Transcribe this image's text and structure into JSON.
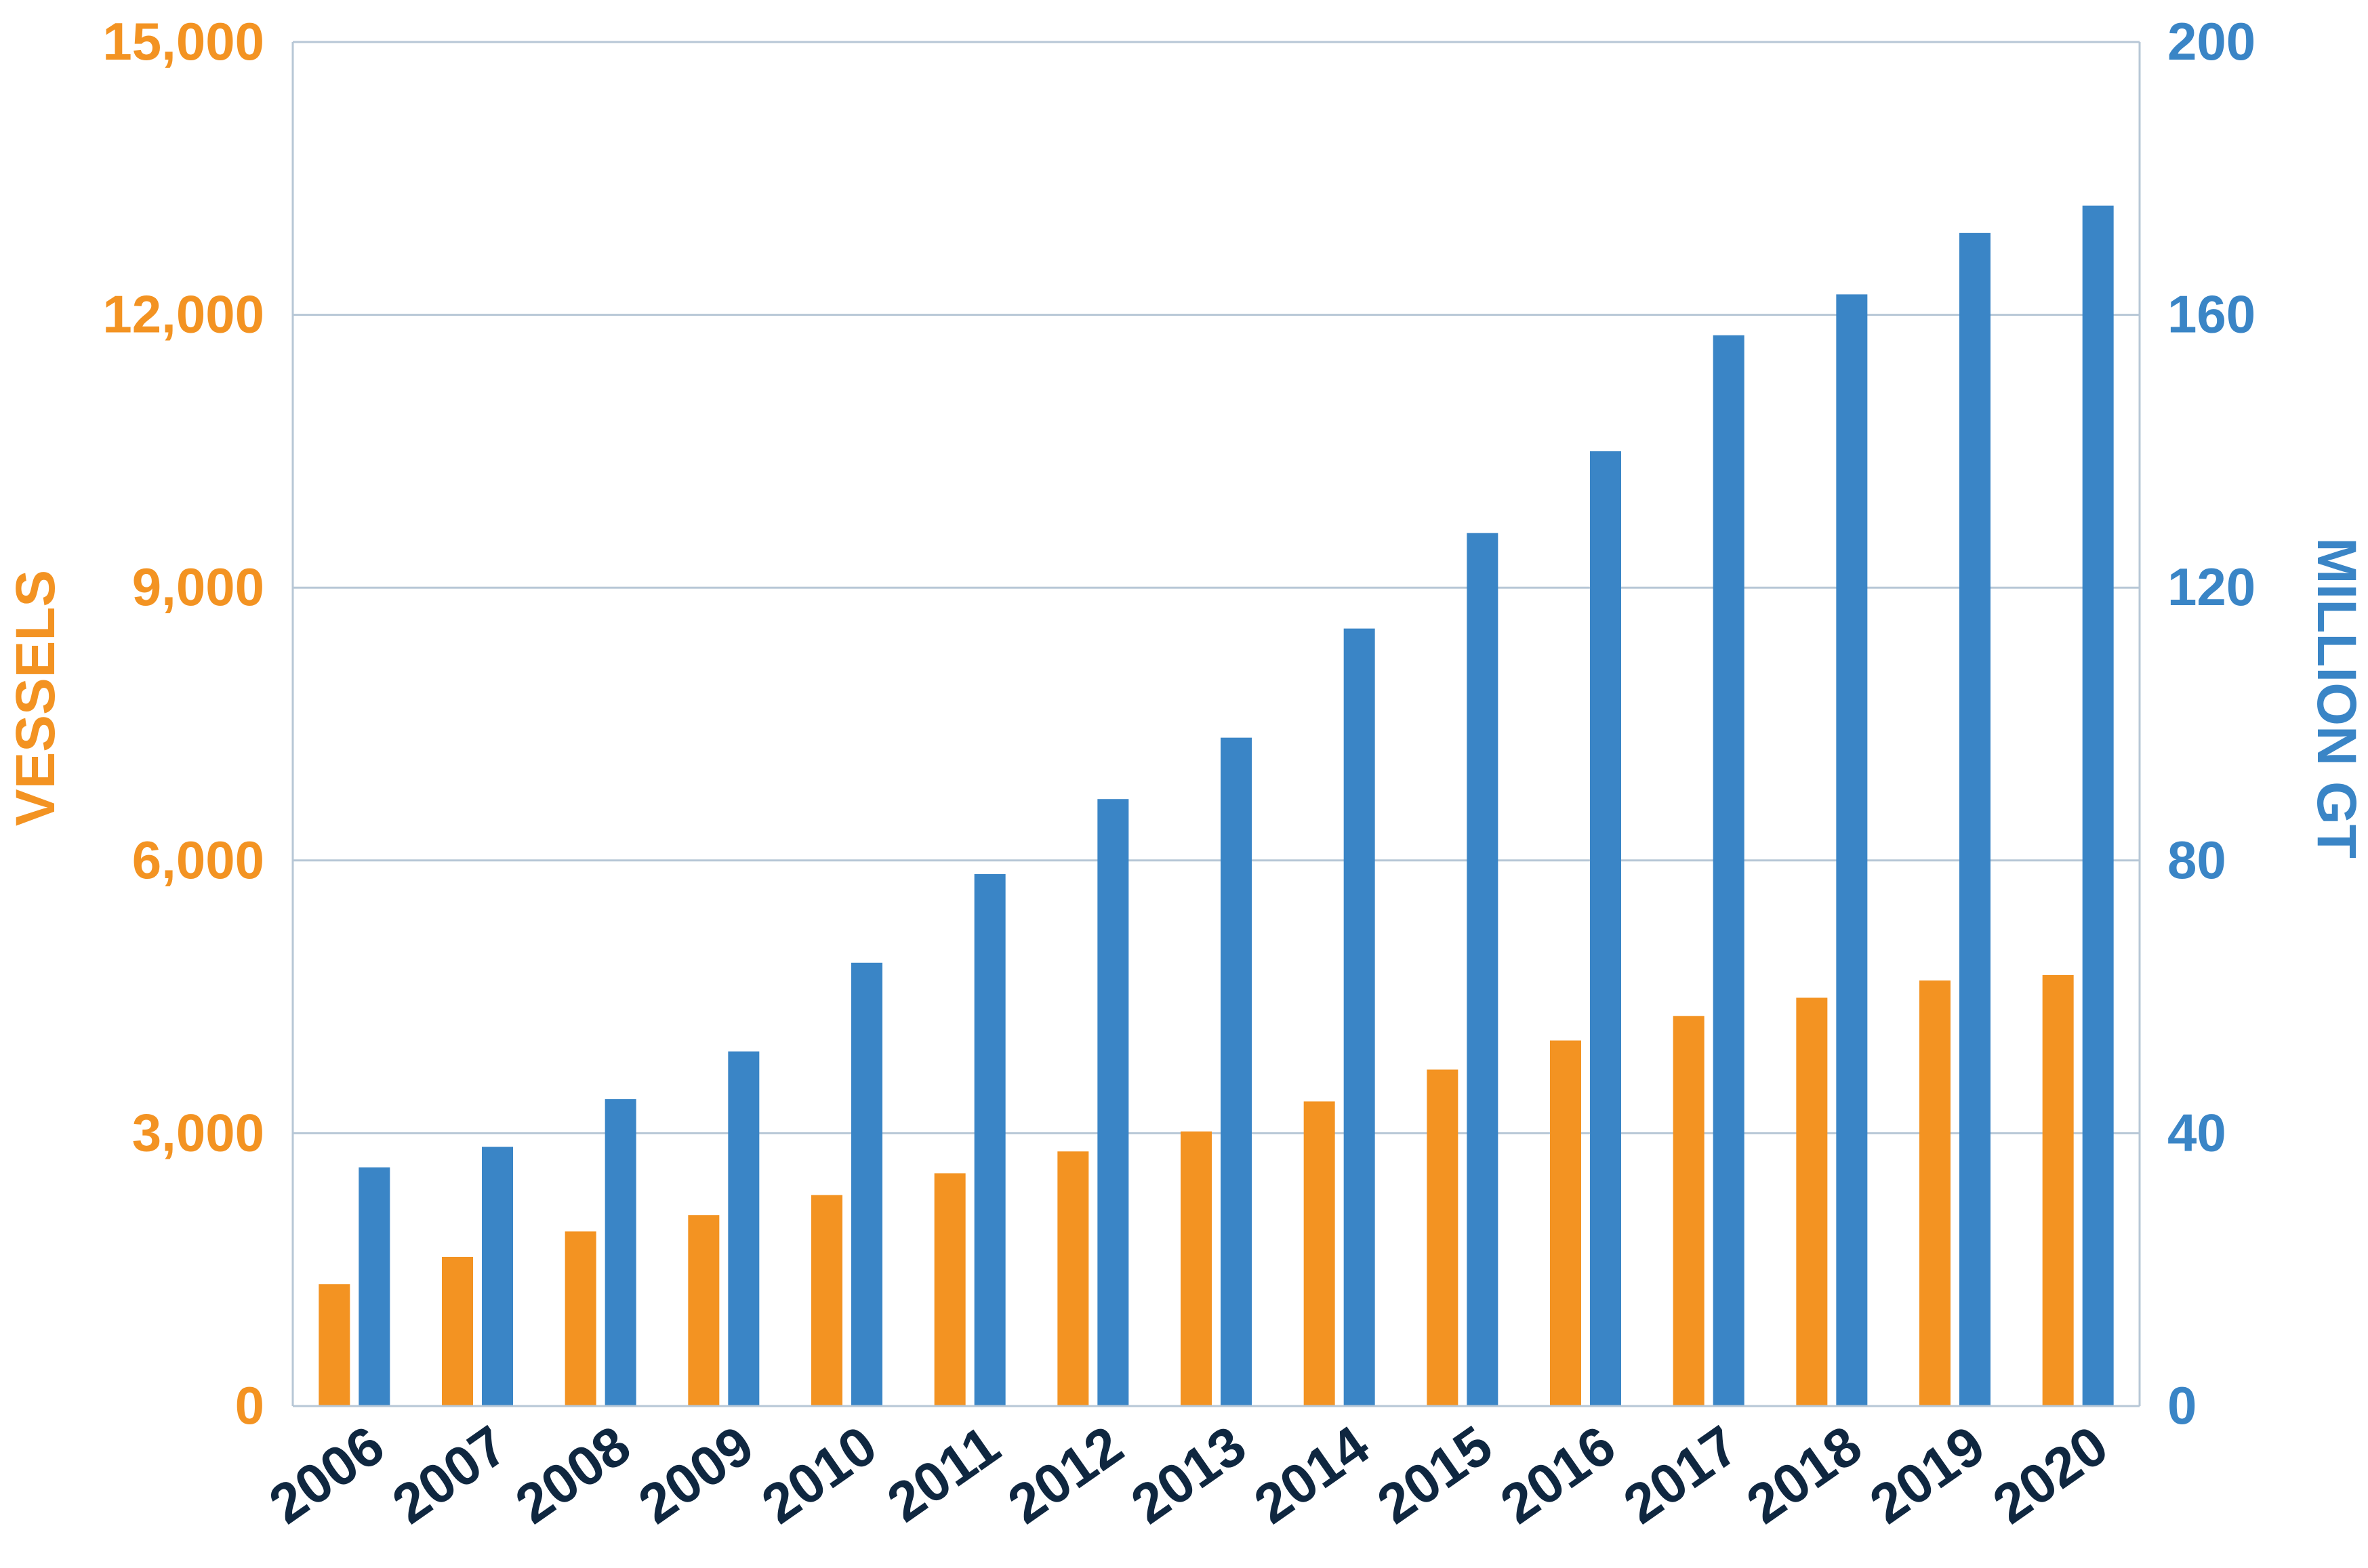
{
  "colors": {
    "vessels": "#F39322",
    "gt": "#3A85C6",
    "year_labels": "#0F2740",
    "grid": "#B7C7D6",
    "frame": "#B7C7D6"
  },
  "chart_data": {
    "type": "bar",
    "categories": [
      "2006",
      "2007",
      "2008",
      "2009",
      "2010",
      "2011",
      "2012",
      "2013",
      "2014",
      "2015",
      "2016",
      "2017",
      "2018",
      "2019",
      "2020"
    ],
    "series": [
      {
        "name": "VESSELS",
        "axis": "left",
        "color": "#F39322",
        "values": [
          1340,
          1640,
          1920,
          2100,
          2320,
          2560,
          2800,
          3020,
          3350,
          3700,
          4020,
          4290,
          4490,
          4680,
          4740
        ]
      },
      {
        "name": "MILLION GT",
        "axis": "right",
        "color": "#3A85C6",
        "values": [
          35,
          38,
          45,
          52,
          65,
          78,
          89,
          98,
          114,
          128,
          140,
          157,
          163,
          172,
          176
        ]
      }
    ],
    "y_left": {
      "label": "VESSELS",
      "range": [
        0,
        15000
      ],
      "ticks": [
        0,
        3000,
        6000,
        9000,
        12000,
        15000
      ],
      "tick_labels": [
        "0",
        "3,000",
        "6,000",
        "9,000",
        "12,000",
        "15,000"
      ]
    },
    "y_right": {
      "label": "MILLION GT",
      "range": [
        0,
        200
      ],
      "ticks": [
        0,
        40,
        80,
        120,
        160,
        200
      ],
      "tick_labels": [
        "0",
        "40",
        "80",
        "120",
        "160",
        "200"
      ]
    },
    "grid": true,
    "legend": "none"
  }
}
